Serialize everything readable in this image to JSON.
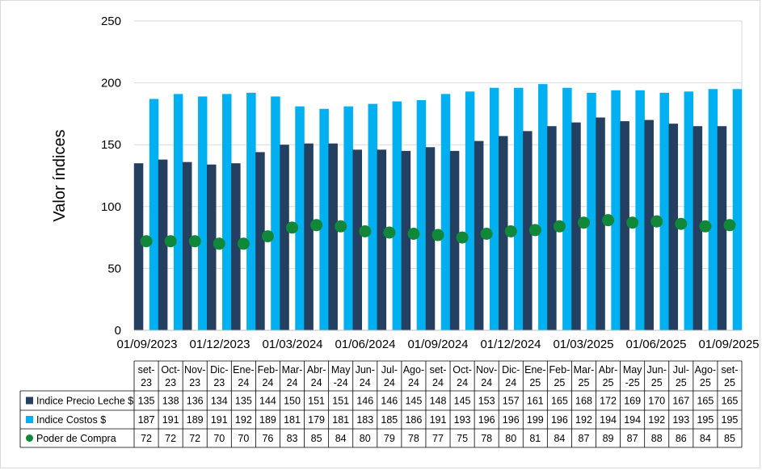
{
  "chart_data": {
    "type": "bar",
    "ylabel": "Valor índices",
    "ylim": [
      0,
      250
    ],
    "yticks": [
      0,
      50,
      100,
      150,
      200,
      250
    ],
    "date_ticks": [
      "01/09/2023",
      "01/12/2023",
      "01/03/2024",
      "01/06/2024",
      "01/09/2024",
      "01/12/2024",
      "01/03/2025",
      "01/06/2025",
      "01/09/2025"
    ],
    "categories": [
      [
        "set-",
        "23"
      ],
      [
        "Oct-",
        "23"
      ],
      [
        "Nov-",
        "23"
      ],
      [
        "Dic-",
        "23"
      ],
      [
        "Ene-",
        "24"
      ],
      [
        "Feb-",
        "24"
      ],
      [
        "Mar-",
        "24"
      ],
      [
        "Abr-",
        "24"
      ],
      [
        "May",
        "-24"
      ],
      [
        "Jun-",
        "24"
      ],
      [
        "Jul-",
        "24"
      ],
      [
        "Ago-",
        "24"
      ],
      [
        "set-",
        "24"
      ],
      [
        "Oct-",
        "24"
      ],
      [
        "Nov-",
        "24"
      ],
      [
        "Dic-",
        "24"
      ],
      [
        "Ene-",
        "25"
      ],
      [
        "Feb-",
        "25"
      ],
      [
        "Mar-",
        "25"
      ],
      [
        "Abr-",
        "25"
      ],
      [
        "May",
        "-25"
      ],
      [
        "Jun-",
        "25"
      ],
      [
        "Jul-",
        "25"
      ],
      [
        "Ago-",
        "25"
      ],
      [
        "set-",
        "25"
      ]
    ],
    "series": [
      {
        "name": "Indice Precio Leche $",
        "kind": "bar",
        "color": "#243F60",
        "values": [
          135,
          138,
          136,
          134,
          135,
          144,
          150,
          151,
          151,
          146,
          146,
          145,
          148,
          145,
          153,
          157,
          161,
          165,
          168,
          172,
          169,
          170,
          167,
          165,
          165
        ]
      },
      {
        "name": "Indice Costos $",
        "kind": "bar",
        "color": "#00B0F0",
        "values": [
          187,
          191,
          189,
          191,
          192,
          189,
          181,
          179,
          181,
          183,
          185,
          186,
          191,
          193,
          196,
          196,
          199,
          196,
          192,
          194,
          194,
          192,
          193,
          195,
          195
        ]
      },
      {
        "name": "Poder de Compra",
        "kind": "marker",
        "color": "#11873A",
        "values": [
          72,
          72,
          72,
          70,
          70,
          76,
          83,
          85,
          84,
          80,
          79,
          78,
          77,
          75,
          78,
          80,
          81,
          84,
          87,
          89,
          87,
          88,
          86,
          84,
          85
        ]
      }
    ]
  }
}
